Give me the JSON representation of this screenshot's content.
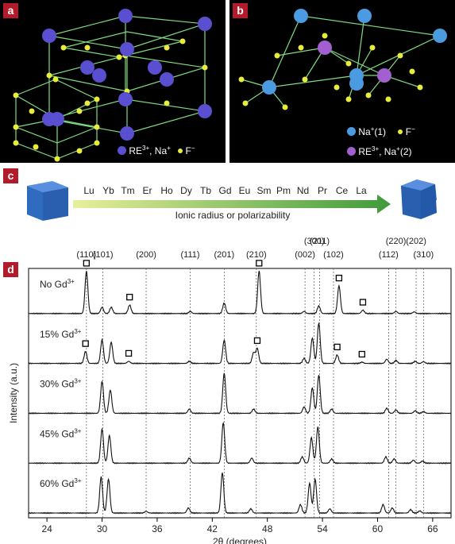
{
  "panels": {
    "a": {
      "label": "a",
      "legend": {
        "ion1": "RE",
        "ion1_sup": "3+",
        "ion1_rest": ", Na",
        "ion1_rest_sup": "+",
        "ion2": "F",
        "ion2_sup": "−"
      }
    },
    "b": {
      "label": "b",
      "legend": {
        "na1": "Na",
        "na1_sup": "+",
        "na1_rest": "(1)",
        "f": "F",
        "f_sup": "−",
        "re": "RE",
        "re_sup": "3+",
        "re_rest": ", Na",
        "re_rest_sup": "+",
        "re_tail": "(2)"
      }
    },
    "c": {
      "label": "c",
      "elements": [
        "Lu",
        "Yb",
        "Tm",
        "Er",
        "Ho",
        "Dy",
        "Tb",
        "Gd",
        "Eu",
        "Sm",
        "Pm",
        "Nd",
        "Pr",
        "Ce",
        "La"
      ],
      "arrow_caption": "Ionic radius or polarizability"
    },
    "d": {
      "label": "d"
    }
  },
  "colors": {
    "panel_label": "#b31b2b",
    "cubic_ion": "#5a4fd0",
    "fluoride": "#e8ec3a",
    "na1": "#4a9be0",
    "re_na2": "#a15fd0",
    "lattice": "#7fdc7f",
    "arrow_start": "#e8ef9c",
    "arrow_end": "#3f9a3a",
    "cube": "#2f6cc0"
  },
  "chart_data": {
    "type": "line",
    "xlabel": "2θ (degrees)",
    "ylabel": "Intensity (a.u.)",
    "xlim": [
      22,
      68
    ],
    "xticks": [
      24,
      30,
      36,
      42,
      48,
      54,
      60,
      66
    ],
    "reflections": [
      {
        "hkl": "(110)",
        "x": 28.3
      },
      {
        "hkl": "(101)",
        "x": 30.1
      },
      {
        "hkl": "(200)",
        "x": 34.8
      },
      {
        "hkl": "(111)",
        "x": 39.6
      },
      {
        "hkl": "(201)",
        "x": 43.3
      },
      {
        "hkl": "(210)",
        "x": 46.8
      },
      {
        "hkl": "(002)",
        "x": 52.1
      },
      {
        "hkl": "(300)",
        "x": 53.1
      },
      {
        "hkl": "(211)",
        "x": 53.7
      },
      {
        "hkl": "(102)",
        "x": 55.2
      },
      {
        "hkl": "(112)",
        "x": 61.2
      },
      {
        "hkl": "(220)",
        "x": 62.0
      },
      {
        "hkl": "(202)",
        "x": 64.2
      },
      {
        "hkl": "(310)",
        "x": 65.0
      }
    ],
    "grid": "dotted vertical lines at reflections",
    "cubic_marker_positions": [
      28.3,
      33.0,
      47.1,
      55.8,
      58.4
    ],
    "series": [
      {
        "name": "No Gd",
        "sup": "3+",
        "peaks": [
          [
            28.3,
            1.0
          ],
          [
            30.0,
            0.15
          ],
          [
            31.0,
            0.15
          ],
          [
            33.0,
            0.2
          ],
          [
            39.6,
            0.05
          ],
          [
            43.3,
            0.25
          ],
          [
            47.1,
            1.0
          ],
          [
            52.0,
            0.05
          ],
          [
            53.6,
            0.18
          ],
          [
            55.8,
            0.65
          ],
          [
            58.4,
            0.08
          ],
          [
            62.0,
            0.05
          ],
          [
            64.0,
            0.04
          ]
        ],
        "markers": [
          28.3,
          33.0,
          47.1,
          55.8,
          58.4
        ]
      },
      {
        "name": "15% Gd",
        "sup": "3+",
        "peaks": [
          [
            28.2,
            0.28
          ],
          [
            30.0,
            0.55
          ],
          [
            31.0,
            0.5
          ],
          [
            32.9,
            0.05
          ],
          [
            39.5,
            0.05
          ],
          [
            43.3,
            0.55
          ],
          [
            46.5,
            0.25
          ],
          [
            46.9,
            0.35
          ],
          [
            52.0,
            0.12
          ],
          [
            52.9,
            0.6
          ],
          [
            53.6,
            0.95
          ],
          [
            55.6,
            0.2
          ],
          [
            58.3,
            0.03
          ],
          [
            61.0,
            0.1
          ],
          [
            62.0,
            0.07
          ],
          [
            64.1,
            0.05
          ],
          [
            65.0,
            0.04
          ]
        ],
        "markers": [
          28.2,
          32.9,
          46.9,
          55.6,
          58.3
        ]
      },
      {
        "name": "30% Gd",
        "sup": "3+",
        "peaks": [
          [
            30.0,
            0.75
          ],
          [
            30.9,
            0.55
          ],
          [
            39.5,
            0.1
          ],
          [
            43.3,
            0.95
          ],
          [
            46.5,
            0.1
          ],
          [
            52.0,
            0.15
          ],
          [
            52.9,
            0.6
          ],
          [
            53.6,
            0.9
          ],
          [
            55.0,
            0.1
          ],
          [
            61.0,
            0.12
          ],
          [
            62.0,
            0.08
          ],
          [
            64.1,
            0.06
          ],
          [
            65.0,
            0.04
          ]
        ],
        "markers": []
      },
      {
        "name": "45% Gd",
        "sup": "3+",
        "peaks": [
          [
            30.0,
            0.8
          ],
          [
            30.8,
            0.65
          ],
          [
            39.5,
            0.12
          ],
          [
            43.2,
            0.95
          ],
          [
            46.3,
            0.12
          ],
          [
            51.8,
            0.15
          ],
          [
            52.8,
            0.6
          ],
          [
            53.5,
            0.85
          ],
          [
            55.0,
            0.1
          ],
          [
            60.9,
            0.15
          ],
          [
            61.8,
            0.1
          ],
          [
            63.9,
            0.07
          ],
          [
            64.9,
            0.05
          ]
        ],
        "markers": []
      },
      {
        "name": "60% Gd",
        "sup": "3+",
        "peaks": [
          [
            29.9,
            0.85
          ],
          [
            30.7,
            0.8
          ],
          [
            34.8,
            0.04
          ],
          [
            39.4,
            0.12
          ],
          [
            43.1,
            0.95
          ],
          [
            46.2,
            0.1
          ],
          [
            51.6,
            0.2
          ],
          [
            52.6,
            0.7
          ],
          [
            53.2,
            0.8
          ],
          [
            54.8,
            0.1
          ],
          [
            60.6,
            0.2
          ],
          [
            61.6,
            0.12
          ],
          [
            63.6,
            0.08
          ],
          [
            64.6,
            0.05
          ]
        ],
        "markers": []
      }
    ]
  }
}
